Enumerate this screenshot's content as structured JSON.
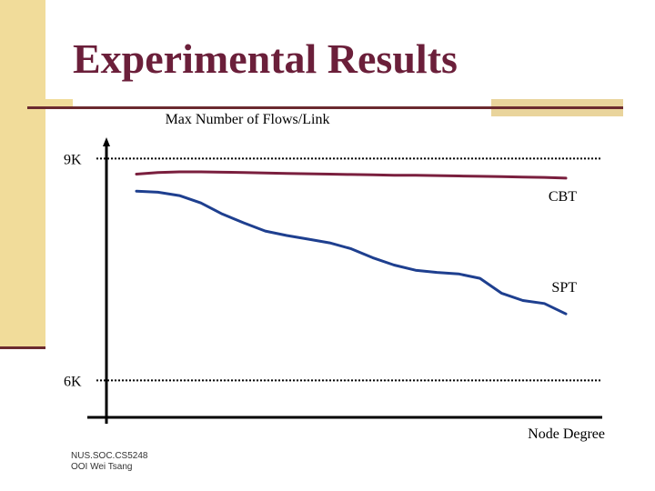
{
  "slide": {
    "title": "Experimental Results",
    "footer_line1": "NUS.SOC.CS5248",
    "footer_line2": "OOI Wei Tsang"
  },
  "colors": {
    "title": "#6b1f3a",
    "accent": "#f1dc9a",
    "rule": "#6b2a2f",
    "cbt": "#7a1f3e",
    "spt": "#1e3f8f"
  },
  "chart_data": {
    "type": "line",
    "title": "Max Number of Flows/Link",
    "xlabel": "Node Degree",
    "ylabel": "",
    "x": [
      0,
      5,
      10,
      15,
      20,
      25,
      30,
      35,
      40,
      45,
      50,
      55,
      60,
      65,
      70,
      75,
      80,
      85,
      90,
      95,
      100
    ],
    "ylim": [
      5500,
      9300
    ],
    "reference_lines": [
      {
        "label": "9K",
        "value": 9000
      },
      {
        "label": "6K",
        "value": 6000
      }
    ],
    "series": [
      {
        "name": "CBT",
        "values": [
          8790,
          8810,
          8820,
          8820,
          8815,
          8812,
          8805,
          8800,
          8795,
          8790,
          8785,
          8780,
          8775,
          8775,
          8770,
          8765,
          8760,
          8755,
          8750,
          8745,
          8735
        ]
      },
      {
        "name": "SPT",
        "values": [
          8560,
          8545,
          8500,
          8400,
          8250,
          8130,
          8020,
          7960,
          7910,
          7860,
          7780,
          7660,
          7560,
          7490,
          7460,
          7440,
          7380,
          7180,
          7080,
          7040,
          6900
        ]
      }
    ]
  }
}
